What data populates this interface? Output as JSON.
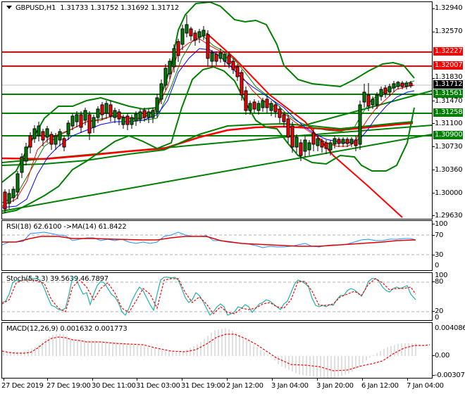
{
  "header": {
    "symbol": "GBPUSD,H1",
    "open": "1.31733",
    "high": "1.31752",
    "low": "1.31692",
    "close": "1.31712"
  },
  "price_axis": {
    "ticks": [
      "1.32940",
      "1.32570",
      "1.31830",
      "1.31470",
      "1.31100",
      "1.30730",
      "1.30360",
      "1.30000",
      "1.29630"
    ],
    "tags": [
      {
        "value": "1.32227",
        "color": "#ff0000"
      },
      {
        "value": "1.32007",
        "color": "#ff0000"
      },
      {
        "value": "1.31712",
        "color": "#000000"
      },
      {
        "value": "1.31561",
        "color": "#008000"
      },
      {
        "value": "1.31258",
        "color": "#008000"
      },
      {
        "value": "1.30900",
        "color": "#008000"
      }
    ]
  },
  "rsi": {
    "title": "RSI(18) 62.6100  ->MA(14) 61.8422",
    "ticks": [
      "100",
      "70",
      "30",
      "0"
    ]
  },
  "stoch": {
    "title": "Stoch(5,3,3) 39.5639 46.7897",
    "ticks": [
      "100",
      "80",
      "20",
      "0"
    ]
  },
  "macd": {
    "title": "MACD(12,26,9) 0.001632 0.001773",
    "ticks": [
      "0.004086",
      "0.00",
      "-0.003079"
    ]
  },
  "time_axis": {
    "labels": [
      "27 Dec 2019",
      "27 Dec 19:00",
      "30 Dec 11:00",
      "31 Dec 03:00",
      "31 Dec 19:00",
      "2 Jan 12:00",
      "3 Jan 04:00",
      "3 Jan 20:00",
      "6 Jan 12:00",
      "7 Jan 04:00"
    ]
  },
  "colors": {
    "resistance": "#ff0000",
    "support": "#008000",
    "bollinger": "#008000",
    "ma_fast": "#ff0000",
    "ma_slow": "#0000ff",
    "rsi_line": "#1e90ff",
    "stoch_main": "#20b2aa",
    "signal": "#ff0000",
    "macd_hist": "#c0c0c0",
    "bull_candle": "#008000",
    "bear_candle": "#ff0000"
  },
  "chart_data": [
    {
      "type": "candlestick",
      "title": "GBPUSD,H1",
      "ohlc_last": {
        "open": 1.31733,
        "high": 1.31752,
        "low": 1.31692,
        "close": 1.31712
      },
      "ylim": [
        1.2963,
        1.3294
      ],
      "y_ticks": [
        1.3294,
        1.3257,
        1.3183,
        1.3147,
        1.311,
        1.3073,
        1.3036,
        1.3,
        1.2963
      ],
      "horizontal_levels": [
        {
          "value": 1.32227,
          "color": "red",
          "role": "resistance"
        },
        {
          "value": 1.32007,
          "color": "red",
          "role": "resistance"
        },
        {
          "value": 1.31561,
          "color": "green",
          "role": "support"
        },
        {
          "value": 1.31258,
          "color": "green",
          "role": "support"
        },
        {
          "value": 1.309,
          "color": "green",
          "role": "support"
        }
      ],
      "current_price": 1.31712,
      "x_labels": [
        "27 Dec 2019",
        "27 Dec 19:00",
        "30 Dec 11:00",
        "31 Dec 03:00",
        "31 Dec 19:00",
        "2 Jan 12:00",
        "3 Jan 04:00",
        "3 Jan 20:00",
        "6 Jan 12:00",
        "7 Jan 04:00"
      ],
      "approx_close_path": [
        {
          "x": "27 Dec 2019",
          "y": 1.2985
        },
        {
          "x": "27 Dec 19:00",
          "y": 1.3112
        },
        {
          "x": "30 Dec 11:00",
          "y": 1.313
        },
        {
          "x": "31 Dec 03:00",
          "y": 1.3125
        },
        {
          "x": "31 Dec 19:00",
          "y": 1.3255
        },
        {
          "x": "2 Jan 12:00",
          "y": 1.314
        },
        {
          "x": "3 Jan 04:00",
          "y": 1.3088
        },
        {
          "x": "3 Jan 20:00",
          "y": 1.308
        },
        {
          "x": "6 Jan 12:00",
          "y": 1.316
        },
        {
          "x": "7 Jan 04:00",
          "y": 1.3171
        }
      ],
      "overlays": [
        "Bollinger Bands (green)",
        "Moving Average fast (red thin)",
        "Moving Average slow (blue thin)",
        "Long MA (red thick)",
        "Trendlines (green, red)"
      ]
    },
    {
      "type": "line",
      "title": "RSI(18) 62.6100 ->MA(14) 61.8422",
      "ylim": [
        0,
        100
      ],
      "levels": [
        70,
        30
      ],
      "series": [
        {
          "name": "RSI(18)",
          "last": 62.61
        },
        {
          "name": "MA(14)",
          "last": 61.8422
        }
      ]
    },
    {
      "type": "line",
      "title": "Stoch(5,3,3) 39.5639 46.7897",
      "ylim": [
        0,
        100
      ],
      "levels": [
        80,
        20
      ],
      "series": [
        {
          "name": "%K",
          "last": 39.5639
        },
        {
          "name": "%D",
          "last": 46.7897
        }
      ]
    },
    {
      "type": "bar",
      "title": "MACD(12,26,9) 0.001632 0.001773",
      "ylim": [
        -0.003079,
        0.004086
      ],
      "series": [
        {
          "name": "MACD",
          "last": 0.001632
        },
        {
          "name": "Signal",
          "last": 0.001773
        }
      ]
    }
  ]
}
